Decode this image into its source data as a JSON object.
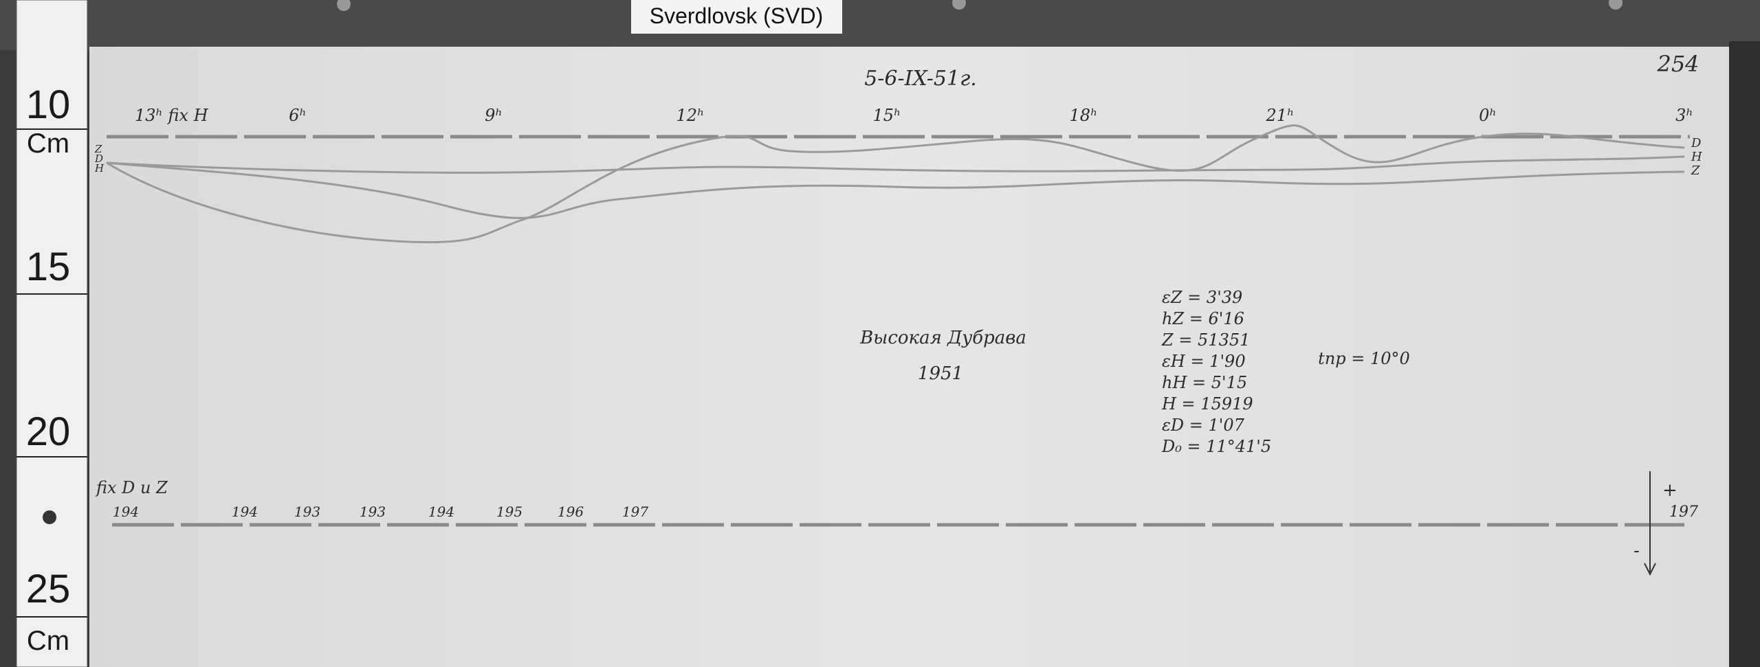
{
  "header": {
    "label": "Sverdlovsk (SVD)"
  },
  "ruler": {
    "marks": [
      "10",
      "15",
      "20",
      "25"
    ],
    "units": [
      "Cm",
      "Cm"
    ]
  },
  "sheet": {
    "caption": "5-6-IX-51г.",
    "page_number": "254",
    "hour_marks": [
      "13ʰ fix H",
      "6ʰ",
      "9ʰ",
      "12ʰ",
      "15ʰ",
      "18ʰ",
      "21ʰ",
      "0ʰ",
      "3ʰ"
    ],
    "trace_labels_left": [
      "Z",
      "D",
      "H"
    ],
    "trace_labels_right": [
      "D",
      "H",
      "Z"
    ],
    "station": "Высокая Дубрава",
    "year": "1951",
    "constants": [
      "εZ = 3'39",
      "hZ = 6'16",
      "Z = 51351",
      "εH = 1'90",
      "hH = 5'15",
      "H = 15919",
      "εD = 1'07",
      "D₀ = 11°41'5"
    ],
    "temperature": "tпр = 10°0",
    "baseline_label": "fix D и Z",
    "baseline_values": [
      "194",
      "194",
      "193",
      "193",
      "194",
      "195",
      "196",
      "197"
    ],
    "scale_end": "197",
    "polarity": [
      "+",
      "-"
    ]
  }
}
